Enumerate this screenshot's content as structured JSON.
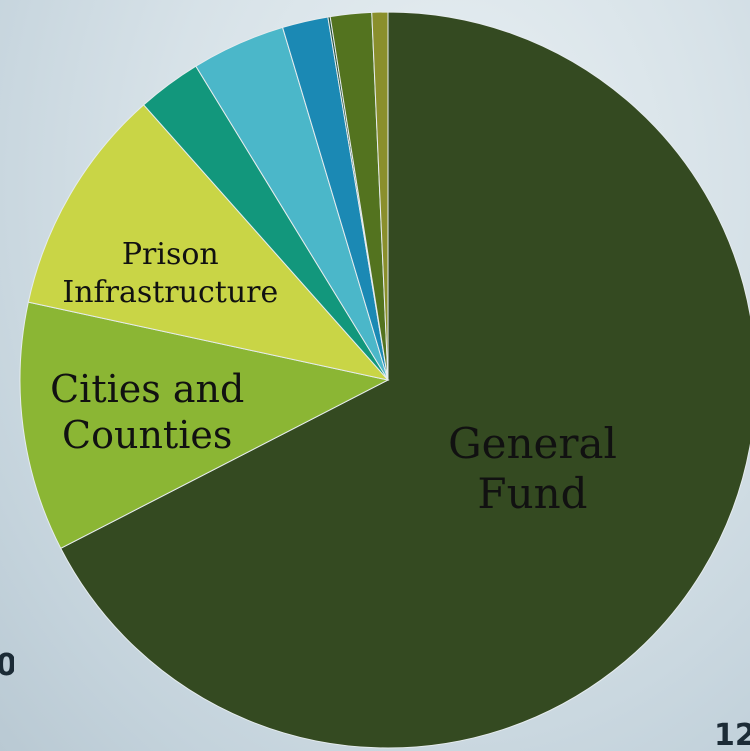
{
  "chart_data": {
    "type": "pie",
    "title": "",
    "start_angle_deg": 0,
    "direction": "clockwise",
    "slices": [
      {
        "label": "General Fund",
        "value": 67.1,
        "color": "#344a21",
        "label_color": "#ffffff",
        "label_lines": [
          "General",
          "Fund"
        ]
      },
      {
        "label": "Cities and Counties",
        "value": 10.9,
        "color": "#8bb634",
        "label_color": "#111111",
        "label_lines": [
          "Cities and",
          "Counties"
        ]
      },
      {
        "label": "Prison Infrastructure",
        "value": 10.0,
        "color": "#c9d546",
        "label_color": "#111111",
        "label_lines": [
          "Prison",
          "Infrastructure"
        ]
      },
      {
        "label": "",
        "value": 2.8,
        "color": "#12977c",
        "label_color": "#111111",
        "label_lines": []
      },
      {
        "label": "",
        "value": 4.1,
        "color": "#4bb7c9",
        "label_color": "#111111",
        "label_lines": []
      },
      {
        "label": "",
        "value": 2.0,
        "color": "#1b89b4",
        "label_color": "#111111",
        "label_lines": []
      },
      {
        "label": "",
        "value": 0.1,
        "color": "#24513a",
        "label_color": "#111111",
        "label_lines": []
      },
      {
        "label": "",
        "value": 1.8,
        "color": "#53731f",
        "label_color": "#111111",
        "label_lines": []
      },
      {
        "label": "",
        "value": 0.7,
        "color": "#8a8f2c",
        "label_color": "#111111",
        "label_lines": []
      }
    ]
  },
  "background_text": {
    "left": "0",
    "right": "12"
  }
}
